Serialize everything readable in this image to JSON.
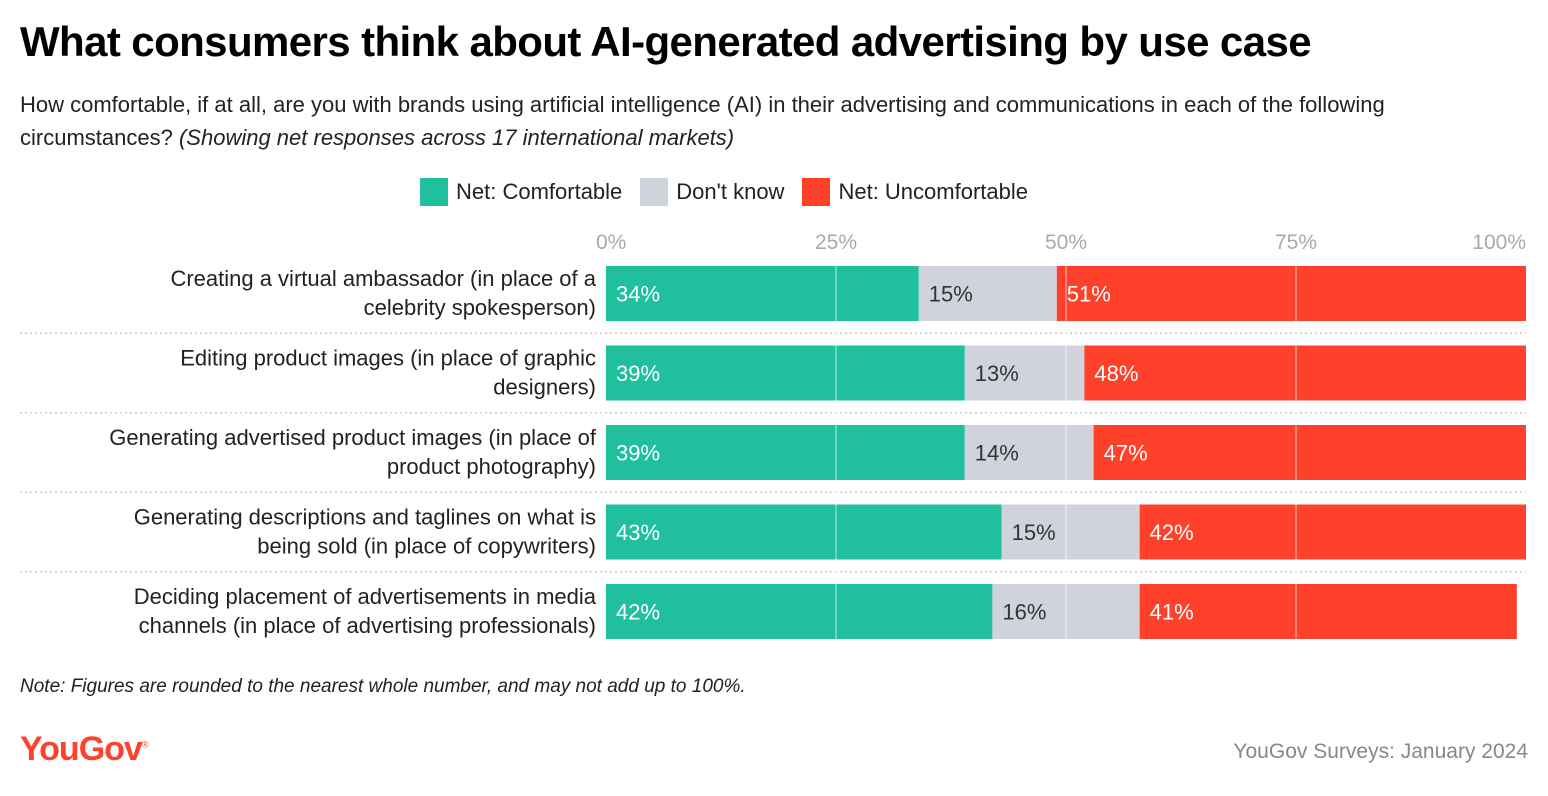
{
  "title": "What consumers think about AI-generated advertising by use case",
  "subtitle_main": "How comfortable, if at all, are you with brands using artificial intelligence (AI) in their advertising and communications in each of the following circumstances?",
  "subtitle_note": "(Showing net responses across 17 international markets)",
  "footnote": "Note: Figures are rounded to the nearest whole number, and may not add up to 100%.",
  "logo": "YouGov",
  "logo_mark": "®",
  "source": "YouGov Surveys: January 2024",
  "colors": {
    "comfortable": "#20bf9e",
    "dont_know": "#d0d3dc",
    "uncomfortable": "#ff412c"
  },
  "chart_data": {
    "type": "bar",
    "orientation": "horizontal",
    "stacked": true,
    "title": "What consumers think about AI-generated advertising by use case",
    "xlim": [
      0,
      100
    ],
    "xticks": [
      "0%",
      "25%",
      "50%",
      "75%",
      "100%"
    ],
    "tick_values": [
      0,
      25,
      50,
      75,
      100
    ],
    "legend_position": "top",
    "categories": [
      [
        "Creating a virtual ambassador (in place of a",
        "celebrity spokesperson)"
      ],
      [
        "Editing product images (in place of graphic",
        "designers)"
      ],
      [
        "Generating advertised product images (in place of",
        "product photography)"
      ],
      [
        "Generating descriptions and taglines on what is",
        "being sold (in place of copywriters)"
      ],
      [
        "Deciding placement of advertisements in media",
        "channels (in place of advertising professionals)"
      ]
    ],
    "series": [
      {
        "name": "Net: Comfortable",
        "key": "comfortable",
        "values": [
          34,
          39,
          39,
          43,
          42
        ],
        "label_color": "#ffffff"
      },
      {
        "name": "Don't know",
        "key": "dont_know",
        "values": [
          15,
          13,
          14,
          15,
          16
        ],
        "label_color": "#333333"
      },
      {
        "name": "Net: Uncomfortable",
        "key": "uncomfortable",
        "values": [
          51,
          48,
          47,
          42,
          41
        ],
        "label_color": "#ffffff"
      }
    ]
  }
}
